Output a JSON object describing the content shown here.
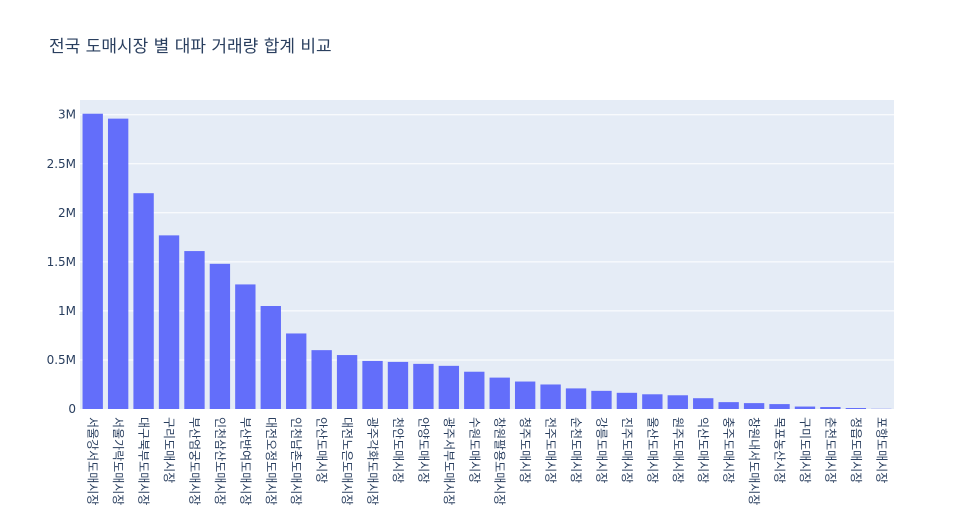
{
  "chart_data": {
    "type": "bar",
    "title": "전국 도매시장 별 대파 거래량 합계 비교",
    "xlabel": "",
    "ylabel": "",
    "ylim": [
      0,
      3150000
    ],
    "y_ticks": [
      0,
      500000,
      1000000,
      1500000,
      2000000,
      2500000,
      3000000
    ],
    "y_tick_labels": [
      "0",
      "0.5M",
      "1M",
      "1.5M",
      "2M",
      "2.5M",
      "3M"
    ],
    "grid": true,
    "bar_color": "#636efa",
    "plot_bg": "#e5ecf6",
    "categories": [
      "서울강서도매시장",
      "서울가락도매시장",
      "대구북부도매시장",
      "구리도매시장",
      "부산엄궁도매시장",
      "인천삼산도매시장",
      "부산반여도매시장",
      "대전오정도매시장",
      "인천남촌도매시장",
      "안산도매시장",
      "대전노은도매시장",
      "광주각화도매시장",
      "천안도매시장",
      "안양도매시장",
      "광주서부도매시장",
      "수원도매시장",
      "창원팔용도매시장",
      "청주도매시장",
      "전주도매시장",
      "순천도매시장",
      "강릉도매시장",
      "진주도매시장",
      "울산도매시장",
      "원주도매시장",
      "익산도매시장",
      "충주도매시장",
      "창원내서도매시장",
      "목포농산시장",
      "구미도매시장",
      "춘천도매시장",
      "정읍도매시장",
      "포항도매시장"
    ],
    "values": [
      3010000,
      2960000,
      2200000,
      1770000,
      1610000,
      1480000,
      1270000,
      1050000,
      770000,
      600000,
      550000,
      490000,
      480000,
      460000,
      440000,
      380000,
      320000,
      280000,
      250000,
      210000,
      185000,
      165000,
      150000,
      140000,
      110000,
      70000,
      60000,
      50000,
      25000,
      20000,
      10000,
      2000
    ]
  }
}
